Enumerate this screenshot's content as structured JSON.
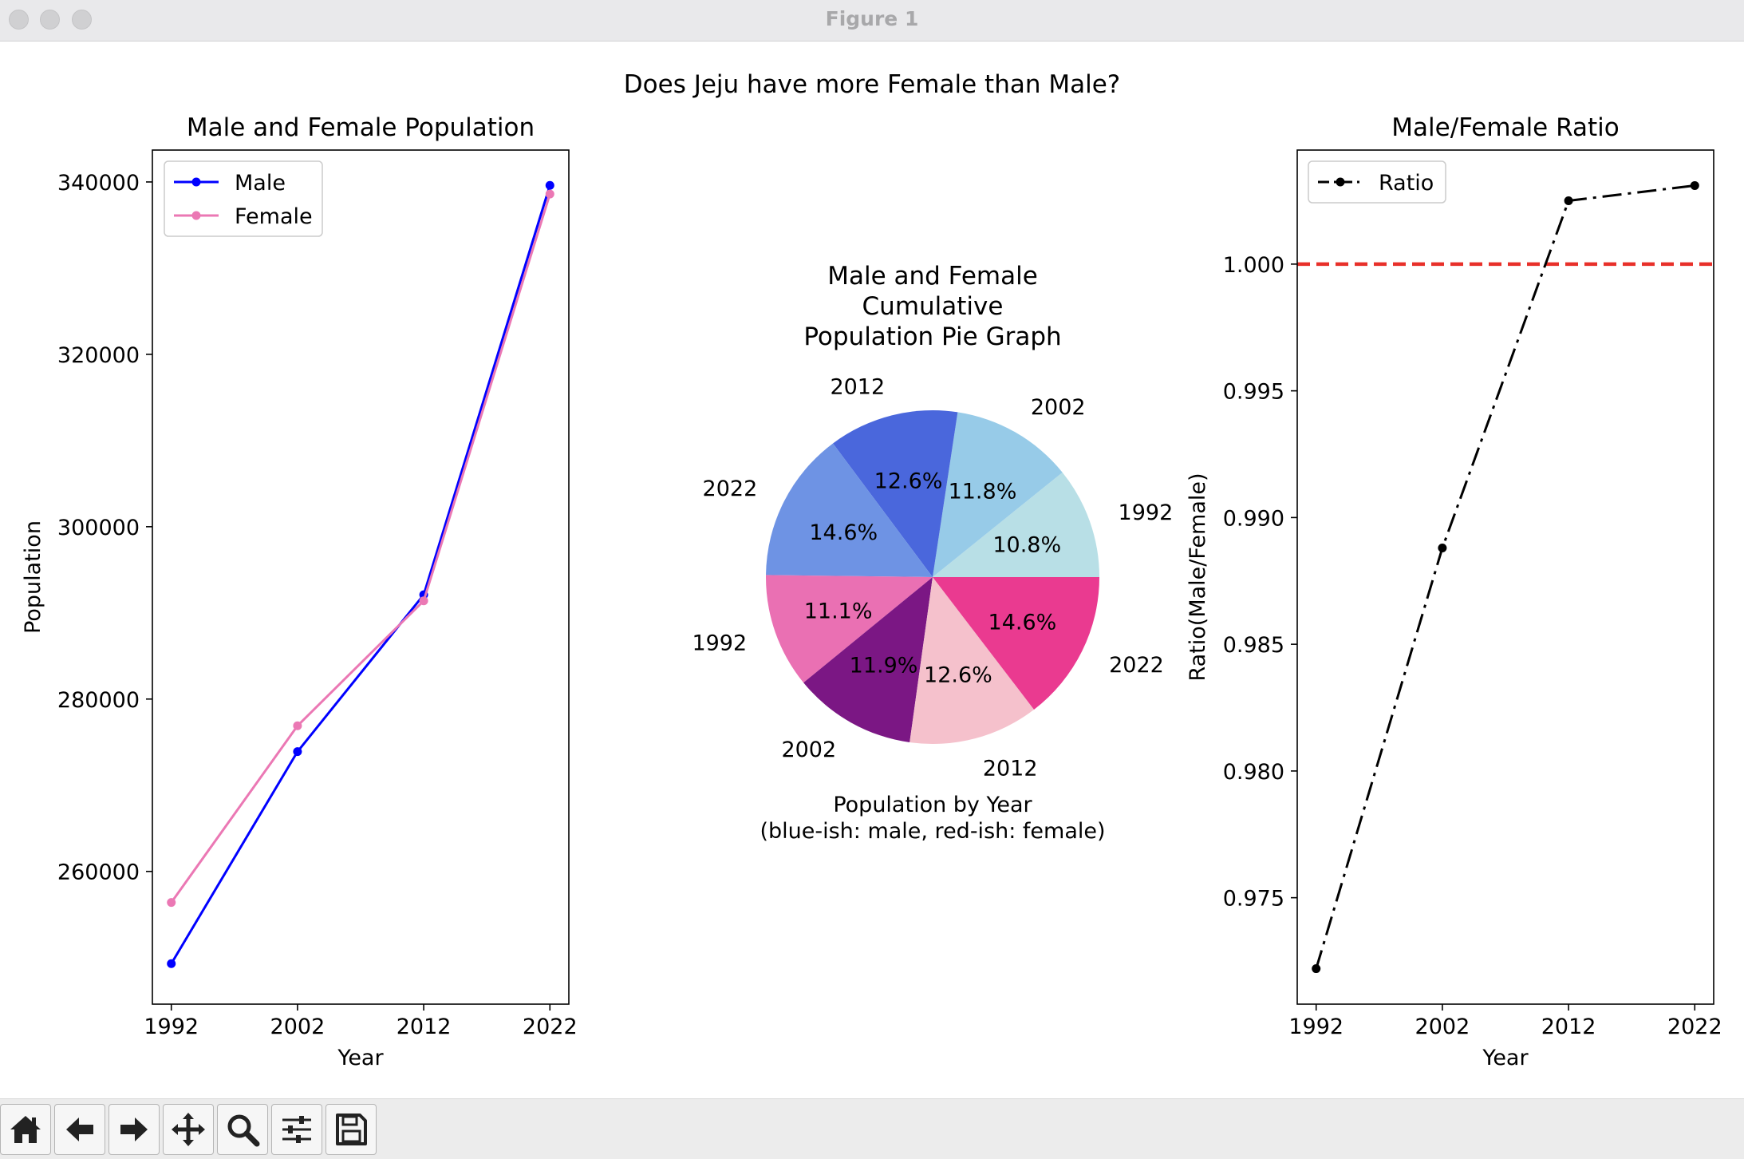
{
  "window": {
    "title": "Figure 1"
  },
  "figure": {
    "suptitle": "Does Jeju have more Female than Male?"
  },
  "toolbar": {
    "buttons": [
      {
        "name": "home-icon"
      },
      {
        "name": "back-arrow-icon"
      },
      {
        "name": "forward-arrow-icon"
      },
      {
        "name": "pan-icon"
      },
      {
        "name": "zoom-icon"
      },
      {
        "name": "configure-subplots-icon"
      },
      {
        "name": "save-icon"
      }
    ]
  },
  "chart_data": [
    {
      "type": "line",
      "title": "Male and Female Population",
      "xlabel": "Year",
      "ylabel": "Population",
      "x": [
        1992,
        2002,
        2012,
        2022
      ],
      "xticks": [
        "1992",
        "2002",
        "2012",
        "2022"
      ],
      "yticks": [
        "260000",
        "280000",
        "300000",
        "320000",
        "340000"
      ],
      "ylim": [
        244600,
        343700
      ],
      "series": [
        {
          "name": "Male",
          "color": "#0000ff",
          "values": [
            249300,
            273900,
            292100,
            339600
          ]
        },
        {
          "name": "Female",
          "color": "#eb78b4",
          "values": [
            256400,
            276900,
            291400,
            338600
          ]
        }
      ],
      "legend": "top-left",
      "grid": false
    },
    {
      "type": "pie",
      "title": "Male and Female\nCumulative\nPopulation Pie Graph",
      "xlabel": "Population by Year\n(blue-ish: male, red-ish: female)",
      "slices": [
        {
          "label": "1992",
          "pct_label": "10.8%",
          "value": 10.8,
          "color": "#b8dfe6"
        },
        {
          "label": "2002",
          "pct_label": "11.8%",
          "value": 11.8,
          "color": "#97cbe8"
        },
        {
          "label": "2012",
          "pct_label": "12.6%",
          "value": 12.6,
          "color": "#4a67dc"
        },
        {
          "label": "2022",
          "pct_label": "14.6%",
          "value": 14.6,
          "color": "#6e93e4"
        },
        {
          "label": "1992",
          "pct_label": "11.1%",
          "value": 11.1,
          "color": "#ea70b3"
        },
        {
          "label": "2002",
          "pct_label": "11.9%",
          "value": 11.9,
          "color": "#7b1784"
        },
        {
          "label": "2012",
          "pct_label": "12.6%",
          "value": 12.6,
          "color": "#f5c1cc"
        },
        {
          "label": "2022",
          "pct_label": "14.6%",
          "value": 14.6,
          "color": "#ea3a90"
        }
      ],
      "start_angle_deg": 0,
      "direction": "counterclockwise"
    },
    {
      "type": "line",
      "title": "Male/Female Ratio",
      "xlabel": "Year",
      "ylabel": "Ratio(Male/Female)",
      "x": [
        1992,
        2002,
        2012,
        2022
      ],
      "xticks": [
        "1992",
        "2002",
        "2012",
        "2022"
      ],
      "yticks": [
        "0.975",
        "0.980",
        "0.985",
        "0.990",
        "0.995",
        "1.000"
      ],
      "ylim": [
        0.9708,
        1.0045
      ],
      "series": [
        {
          "name": "Ratio",
          "color": "#000000",
          "linestyle": "dashdot",
          "values": [
            0.9722,
            0.9888,
            1.0025,
            1.0031
          ]
        }
      ],
      "hline": {
        "value": 1.0,
        "color": "#e8302a",
        "linestyle": "dashed"
      },
      "legend": "top-left",
      "grid": false
    }
  ]
}
